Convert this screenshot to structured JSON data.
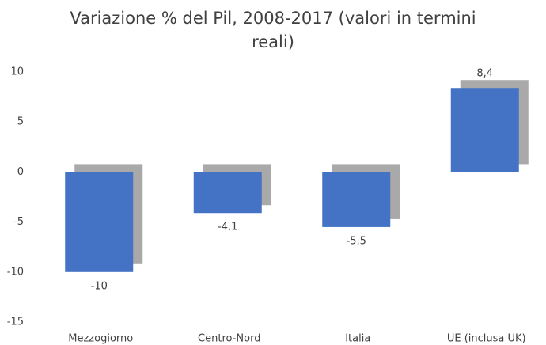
{
  "chart_data": {
    "type": "bar",
    "title": "Variazione % del Pil, 2008-2017 (valori in termini reali)",
    "categories": [
      "Mezzogiorno",
      "Centro-Nord",
      "Italia",
      "UE (inclusa UK)"
    ],
    "values": [
      -10,
      -4.1,
      -5.5,
      8.4
    ],
    "value_labels": [
      "-10",
      "-4,1",
      "-5,5",
      "8,4"
    ],
    "color": "#4472c4",
    "ylim": [
      -15,
      10
    ],
    "yticks": [
      -15,
      -10,
      -5,
      0,
      5,
      10
    ],
    "grid": false
  }
}
